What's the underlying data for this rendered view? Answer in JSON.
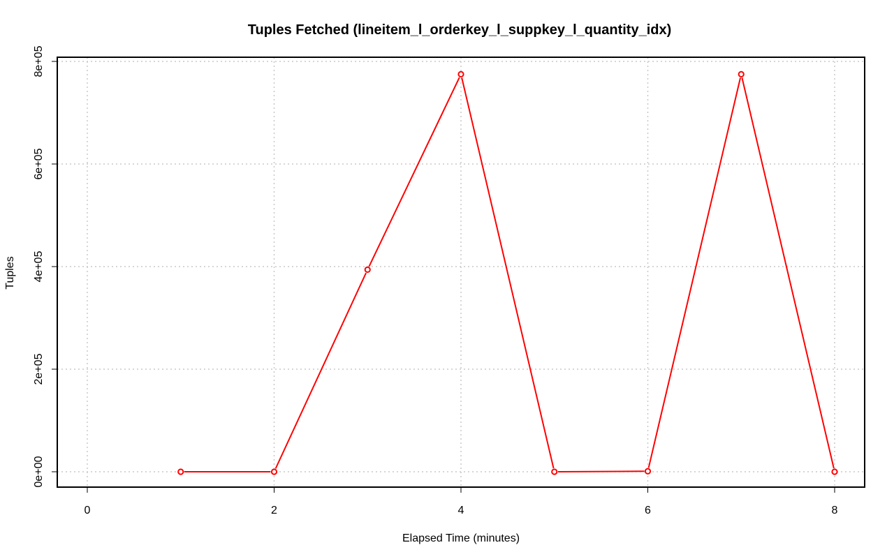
{
  "chart_data": {
    "type": "line",
    "title": "Tuples Fetched (lineitem_l_orderkey_l_suppkey_l_quantity_idx)",
    "xlabel": "Elapsed Time (minutes)",
    "ylabel": "Tuples",
    "xlim": [
      0,
      8
    ],
    "ylim": [
      0,
      800000
    ],
    "x_ticks": [
      0,
      2,
      4,
      6,
      8
    ],
    "x_tick_labels": [
      "0",
      "2",
      "4",
      "6",
      "8"
    ],
    "y_ticks": [
      0,
      200000,
      400000,
      600000,
      800000
    ],
    "y_tick_labels": [
      "0e+00",
      "2e+05",
      "4e+05",
      "6e+05",
      "8e+05"
    ],
    "grid": true,
    "series": [
      {
        "color": "#ff0000",
        "x": [
          1,
          2,
          3,
          4,
          5,
          6,
          7,
          8
        ],
        "values": [
          0,
          0,
          394000,
          775000,
          0,
          1000,
          775000,
          0
        ]
      }
    ]
  }
}
